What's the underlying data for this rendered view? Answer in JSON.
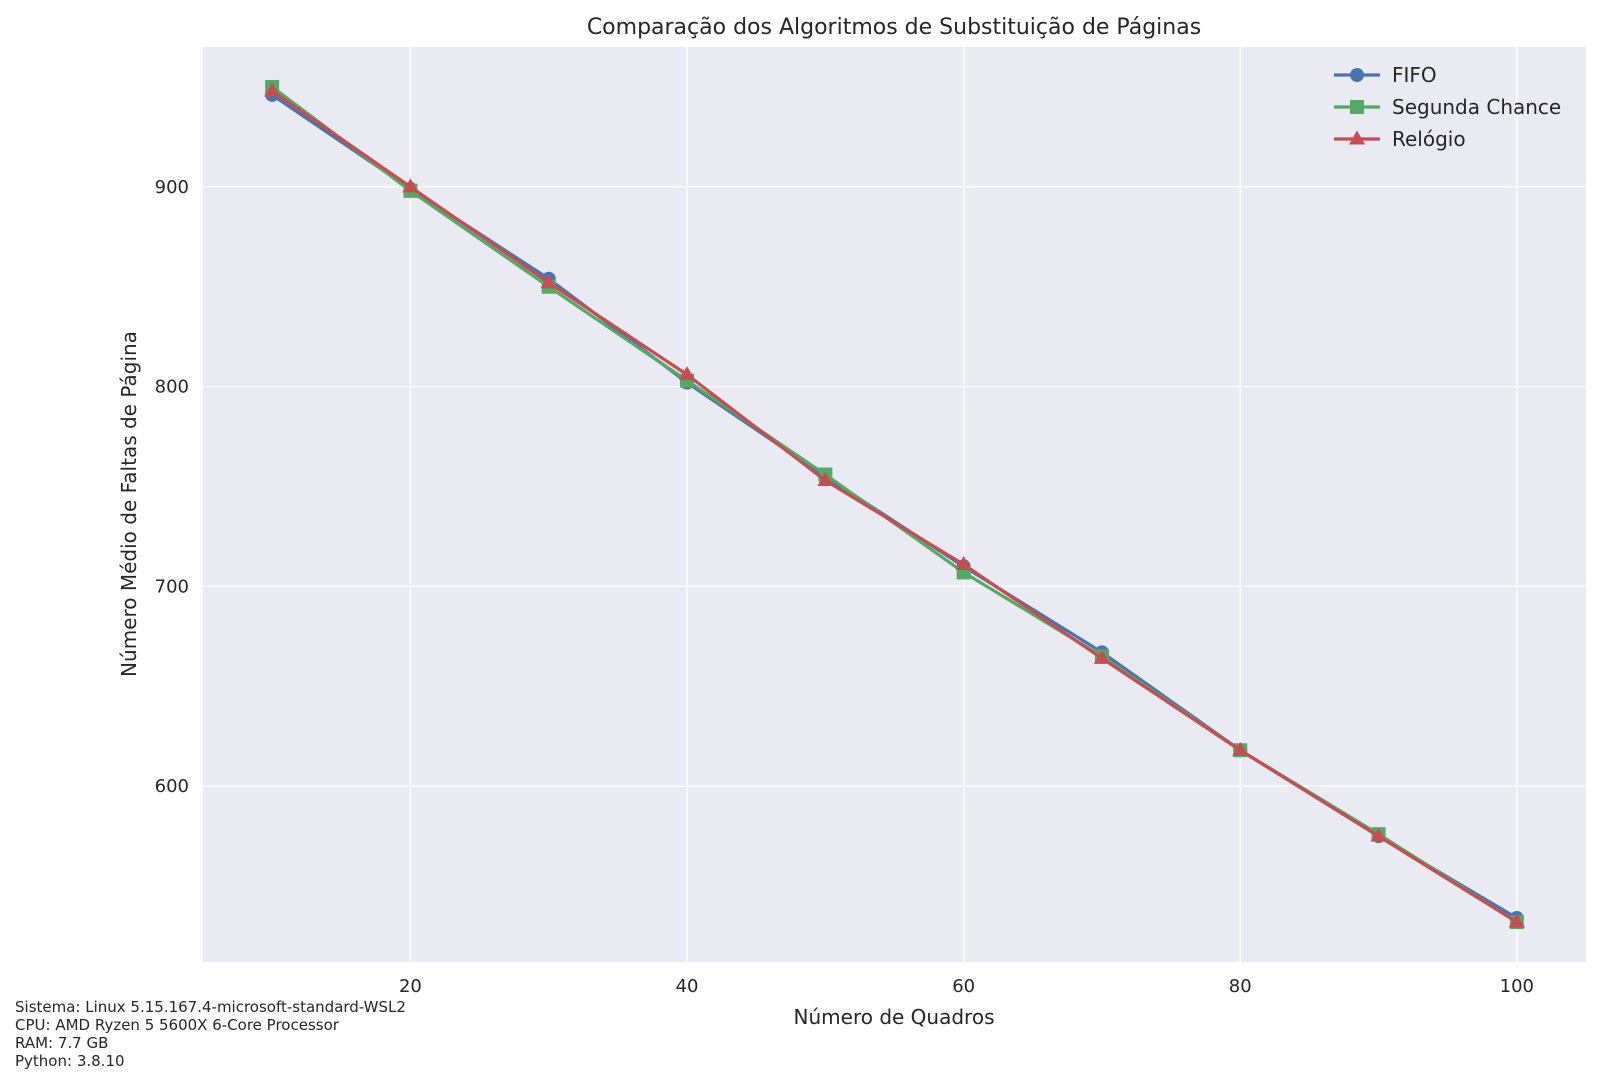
{
  "chart_data": {
    "type": "line",
    "title": "Comparação dos Algoritmos de Substituição de Páginas",
    "xlabel": "Número de Quadros",
    "ylabel": "Número Médio de Faltas de Página",
    "x": [
      10,
      20,
      30,
      40,
      50,
      60,
      70,
      80,
      90,
      100
    ],
    "xlim": [
      5,
      105
    ],
    "ylim": [
      512,
      970
    ],
    "xticks": [
      20,
      40,
      60,
      80,
      100
    ],
    "yticks": [
      600,
      700,
      800,
      900
    ],
    "grid": true,
    "legend_position": "top-right",
    "background_color": "#eaeaf2",
    "series": [
      {
        "name": "FIFO",
        "color": "#4c72b0",
        "marker": "circle",
        "values": [
          946,
          899,
          854,
          802,
          755,
          710,
          667,
          618,
          575,
          534
        ]
      },
      {
        "name": "Segunda Chance",
        "color": "#55a868",
        "marker": "square",
        "values": [
          950,
          898,
          850,
          803,
          756,
          707,
          665,
          618,
          576,
          532
        ]
      },
      {
        "name": "Relógio",
        "color": "#c44e52",
        "marker": "triangle",
        "values": [
          948,
          900,
          852,
          806,
          753,
          711,
          664,
          618,
          575,
          532
        ]
      }
    ]
  },
  "system_info": {
    "os": "Sistema: Linux 5.15.167.4-microsoft-standard-WSL2",
    "cpu": "CPU: AMD Ryzen 5 5600X 6-Core Processor",
    "ram": "RAM: 7.7 GB",
    "python": "Python: 3.8.10"
  }
}
